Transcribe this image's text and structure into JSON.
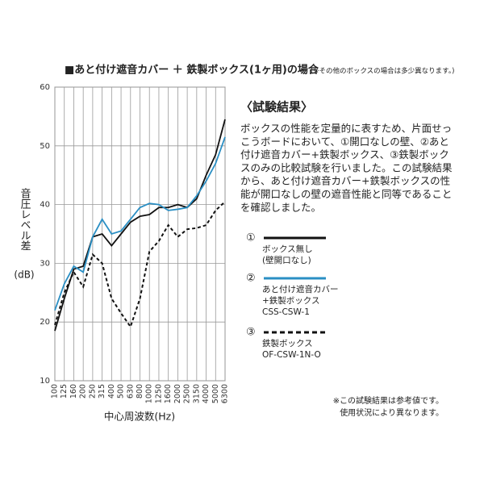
{
  "chart_data": {
    "type": "line",
    "title": "■あと付け遮音カバー ＋ 鉄製ボックス(1ヶ用)の場合",
    "note": "(※その他のボックスの場合は多少異なります。)",
    "y_label": "音圧レベル差",
    "y_unit": "(dB)",
    "x_label": "中心周波数(Hz)",
    "categories": [
      "100",
      "125",
      "160",
      "200",
      "250",
      "315",
      "400",
      "500",
      "630",
      "800",
      "1000",
      "1250",
      "1600",
      "2000",
      "2500",
      "3150",
      "4000",
      "5000",
      "6300"
    ],
    "ylim": [
      10,
      60
    ],
    "yticks": [
      10,
      20,
      30,
      40,
      50,
      60
    ],
    "grid": true,
    "series": [
      {
        "marker": "①",
        "name": "ボックス無し",
        "sublabels": [
          "(壁開口なし)"
        ],
        "color": "#111111",
        "dash": false,
        "values": [
          18.5,
          24,
          29,
          29.5,
          34.5,
          35,
          33,
          35,
          37,
          38,
          38.3,
          39.5,
          39.5,
          40,
          39.5,
          41,
          45,
          48.5,
          54.5
        ]
      },
      {
        "marker": "②",
        "name": "あと付け遮音カバー",
        "sublabels": [
          "+鉄製ボックス",
          "CSS-CSW-1"
        ],
        "color": "#2a8fc4",
        "dash": false,
        "values": [
          22,
          26.5,
          29.5,
          28.5,
          34.5,
          37.5,
          35,
          35.5,
          37.5,
          39.5,
          40.2,
          40,
          39,
          39.2,
          39.5,
          41.5,
          44,
          47,
          51.5
        ]
      },
      {
        "marker": "③",
        "name": "鉄製ボックス",
        "sublabels": [
          "OF-CSW-1N-O"
        ],
        "color": "#111111",
        "dash": true,
        "values": [
          19.5,
          25,
          28.5,
          26,
          31.5,
          30,
          24,
          21.5,
          19.2,
          24,
          32,
          33.8,
          36.5,
          34.5,
          35.8,
          36,
          36.5,
          39,
          40.5
        ]
      }
    ],
    "results_heading": "〈試験結果〉",
    "results_text": [
      "ボックスの性能を定量的に表すため、片面せっ",
      "こうボードにおいて、①開口なしの壁、②あと",
      "付け遮音カバー+鉄製ボックス、③鉄製ボック",
      "スのみの比較試験を行いました。この試験結果",
      "から、あと付け遮音カバー+鉄製ボックスの性",
      "能が開口なしの壁の遮音性能と同等であること",
      "を確認しました。"
    ],
    "footnotes": [
      "※この試験結果は参考値です。",
      "使用状況により異なります。"
    ]
  }
}
